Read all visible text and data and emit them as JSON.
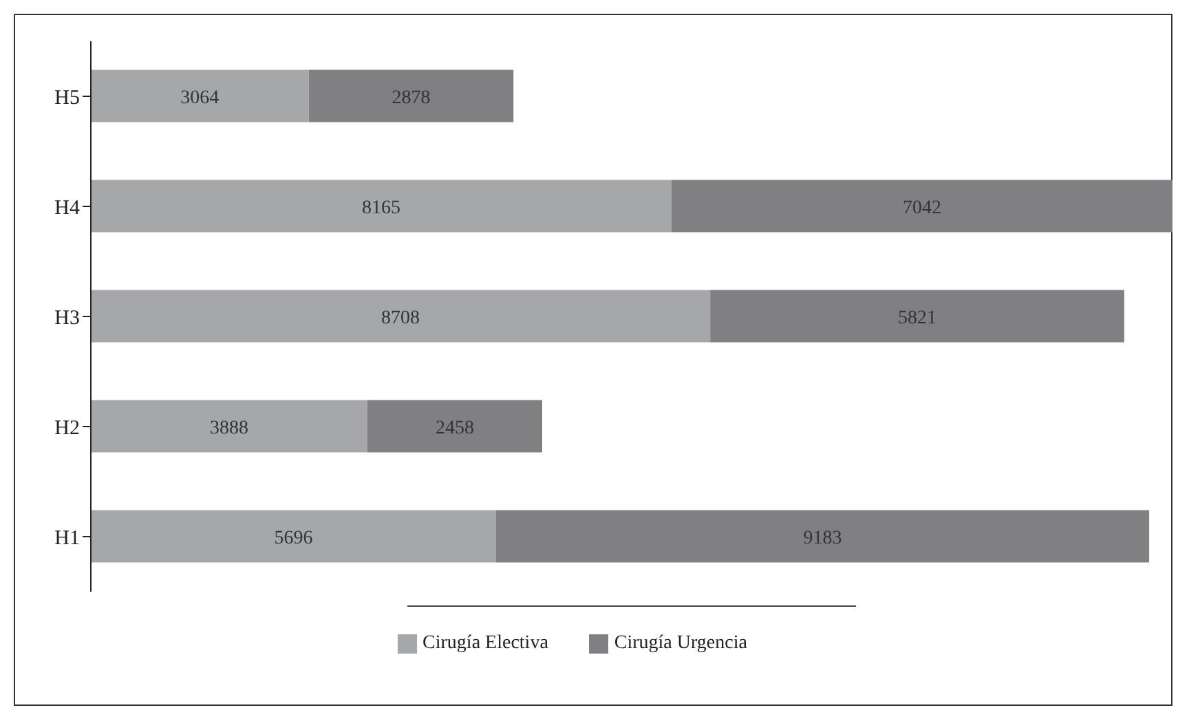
{
  "chart_data": {
    "type": "bar",
    "orientation": "horizontal",
    "stacked": true,
    "categories": [
      "H5",
      "H4",
      "H3",
      "H2",
      "H1"
    ],
    "series": [
      {
        "name": "Cirugía Electiva",
        "color": "#a6a7a9",
        "values": [
          3064,
          8165,
          8708,
          3888,
          5696
        ]
      },
      {
        "name": "Cirugía Urgencia",
        "color": "#808082",
        "values": [
          2878,
          7042,
          5821,
          2458,
          9183
        ]
      }
    ],
    "xlim": [
      0,
      15207
    ],
    "tick_labels": "y",
    "data_labels": true,
    "legend": "bottom",
    "grid": false
  }
}
